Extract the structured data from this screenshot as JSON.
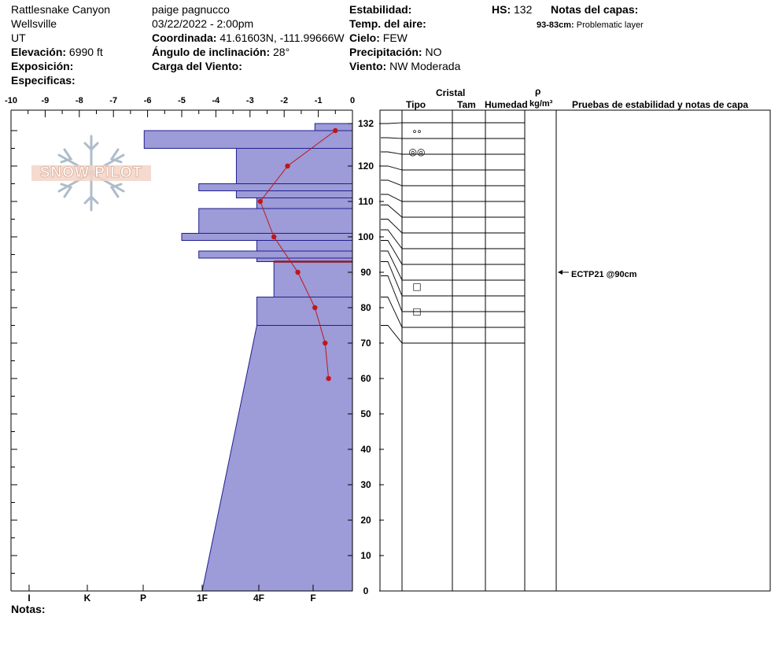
{
  "header": {
    "location": "Rattlesnake Canyon",
    "region": "Wellsville",
    "state": "UT",
    "elevation_label": "Elevación:",
    "elevation_value": "6990 ft",
    "aspect_label": "Exposición:",
    "specifics_label": "Especificas:",
    "observer": "paige pagnucco",
    "datetime": "03/22/2022 - 2:00pm",
    "coords_label": "Coordinada:",
    "coords_value": "41.61603N, -111.99666W",
    "slope_label": "Ángulo de inclinación:",
    "slope_value": "28°",
    "wind_load_label": "Carga del Viento:",
    "stability_label": "Estabilidad:",
    "air_temp_label": "Temp. del aire:",
    "sky_label": "Cielo:",
    "sky_value": "FEW",
    "precip_label": "Precipitación:",
    "precip_value": "NO",
    "wind_label": "Viento:",
    "wind_value": "NW Moderada",
    "hs_label": "HS:",
    "hs_value": "132",
    "layer_notes_label": "Notas del capas:",
    "layer_note_range": "93-83cm:",
    "layer_note_text": "Problematic layer"
  },
  "footer": {
    "notes_label": "Notas:"
  },
  "logo": {
    "text": "SNOW PILOT"
  },
  "table_headers": {
    "crystal": "Cristal",
    "type": "Tipo",
    "size": "Tam",
    "moisture": "Humedad",
    "rho": "ρ",
    "density_unit": "kg/m³",
    "tests": "Pruebas de estabilidad y notas de capa"
  },
  "chart_data": {
    "type": "snow-profile",
    "temperature_axis": {
      "range": [
        -10,
        0
      ],
      "ticks": [
        -10,
        -9,
        -8,
        -7,
        -6,
        -5,
        -4,
        -3,
        -2,
        -1,
        0
      ]
    },
    "hardness_axis": {
      "ticks": [
        "I",
        "K",
        "P",
        "1F",
        "4F",
        "F"
      ]
    },
    "depth_axis": {
      "range": [
        0,
        132
      ],
      "ticks": [
        132,
        120,
        110,
        100,
        90,
        80,
        70,
        60,
        50,
        40,
        30,
        20,
        10,
        0
      ],
      "unit": "cm"
    },
    "hardness_layers": [
      {
        "top": 132,
        "bottom": 130,
        "temp_equiv": -1.1
      },
      {
        "top": 130,
        "bottom": 125,
        "temp_equiv": -6.1
      },
      {
        "top": 125,
        "bottom": 115,
        "temp_equiv": -3.4
      },
      {
        "top": 115,
        "bottom": 113,
        "temp_equiv": -4.5
      },
      {
        "top": 113,
        "bottom": 111,
        "temp_equiv": -3.4
      },
      {
        "top": 111,
        "bottom": 108,
        "temp_equiv": -2.8
      },
      {
        "top": 108,
        "bottom": 101,
        "temp_equiv": -4.5
      },
      {
        "top": 101,
        "bottom": 99,
        "temp_equiv": -5.0
      },
      {
        "top": 99,
        "bottom": 96,
        "temp_equiv": -2.8
      },
      {
        "top": 96,
        "bottom": 94,
        "temp_equiv": -4.5
      },
      {
        "top": 94,
        "bottom": 93,
        "temp_equiv": -2.8
      },
      {
        "top": 93,
        "bottom": 83,
        "temp_equiv": -2.3
      },
      {
        "top": 83,
        "bottom": 75,
        "temp_equiv": -2.8
      },
      {
        "top": 75,
        "bottom": 0,
        "temp_equiv_top": -2.8,
        "temp_equiv_bottom": -4.4
      }
    ],
    "temperature_profile": [
      {
        "depth": 130,
        "temp": -0.5
      },
      {
        "depth": 120,
        "temp": -1.9
      },
      {
        "depth": 110,
        "temp": -2.7
      },
      {
        "depth": 100,
        "temp": -2.3
      },
      {
        "depth": 90,
        "temp": -1.6
      },
      {
        "depth": 80,
        "temp": -1.1
      },
      {
        "depth": 70,
        "temp": -0.8
      },
      {
        "depth": 60,
        "temp": -0.7
      }
    ],
    "layer_boundaries": [
      132,
      128,
      124,
      120,
      116,
      112,
      109,
      105,
      102,
      99,
      96,
      93,
      89,
      83,
      75
    ],
    "crystal_symbols": [
      {
        "depth": 129,
        "symbol": "°°"
      },
      {
        "depth": 124,
        "symbol": "◎◎"
      },
      {
        "depth": 86,
        "symbol": "□"
      },
      {
        "depth": 79,
        "symbol": "□"
      }
    ],
    "stability_tests": [
      {
        "depth": 90,
        "text": "ECTP21 @90cm"
      }
    ]
  }
}
